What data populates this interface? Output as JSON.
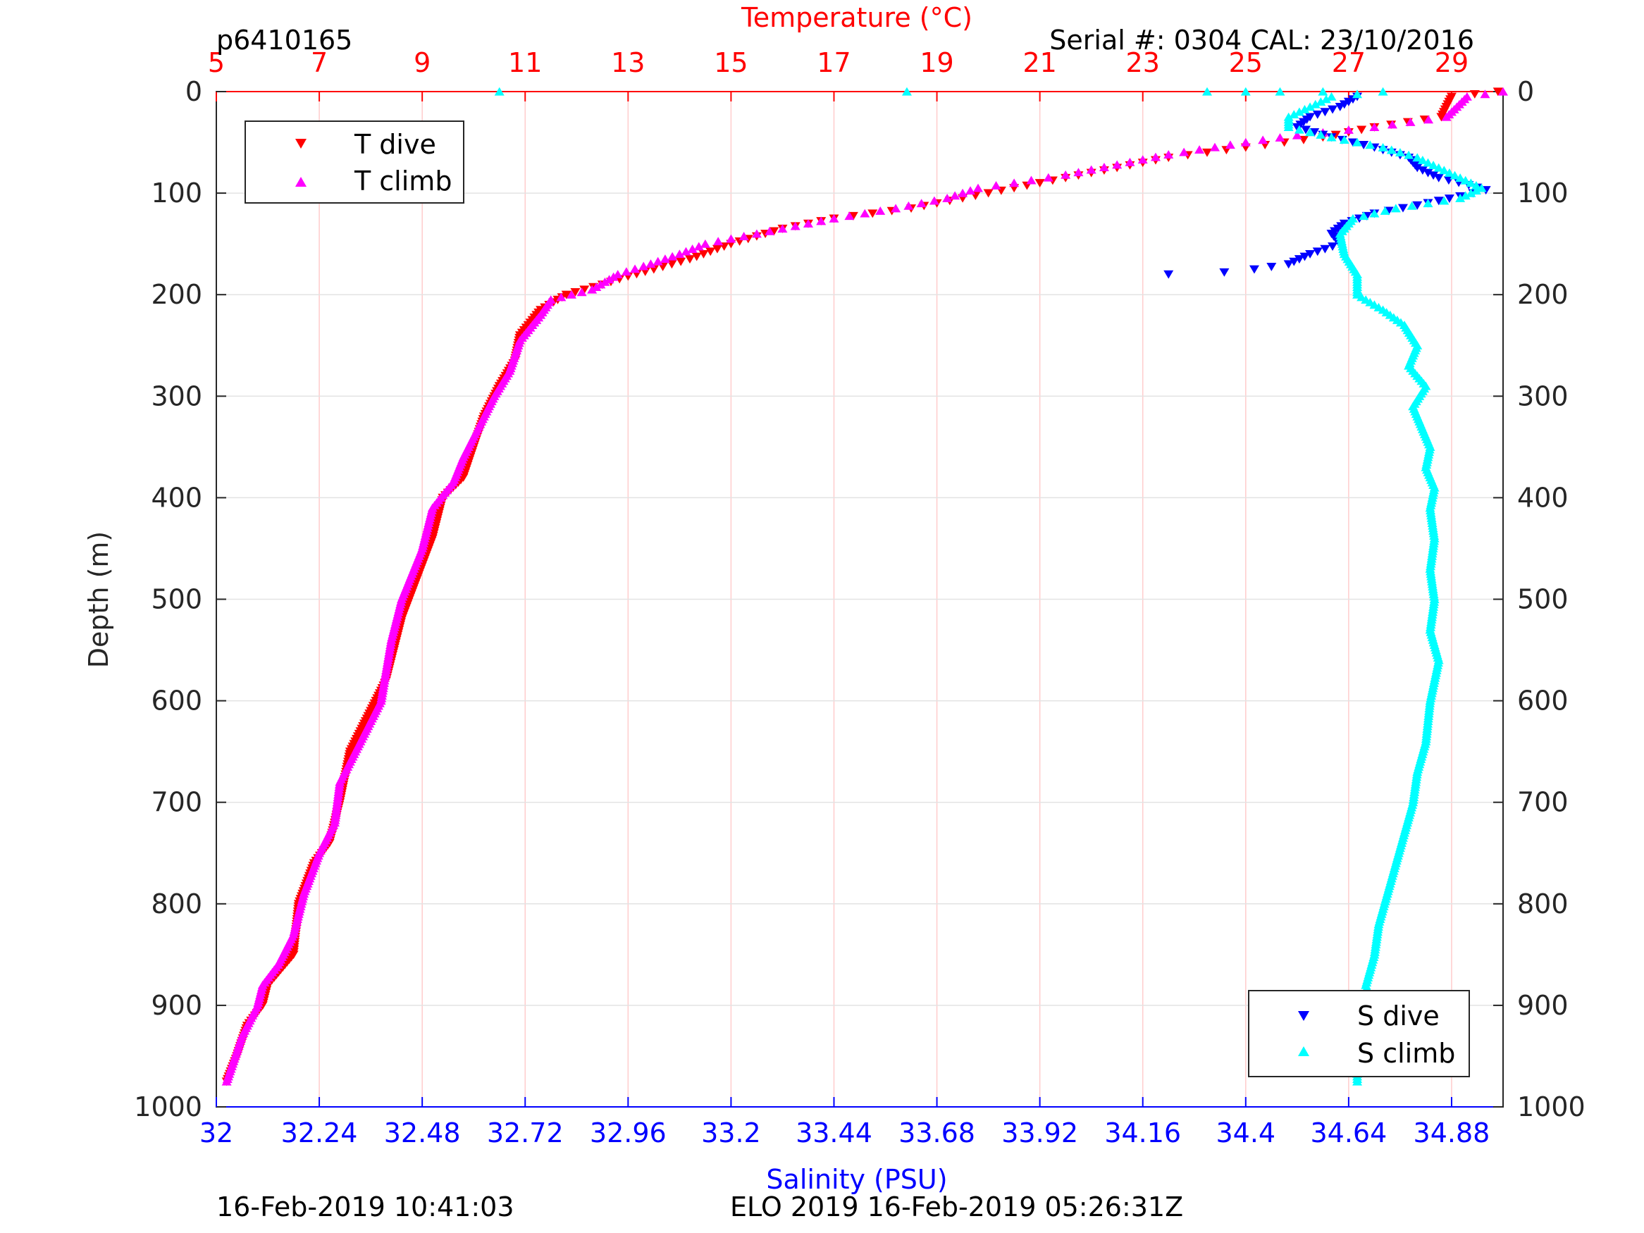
{
  "header": {
    "profile_id": "p6410165",
    "serial_cal": "Serial #: 0304  CAL: 23/10/2016"
  },
  "footer": {
    "left": "16-Feb-2019 10:41:03",
    "center": "ELO 2019 16-Feb-2019 05:26:31Z"
  },
  "colors": {
    "t_dive": "#ff0000",
    "t_climb": "#ff00ff",
    "s_dive": "#0000ff",
    "s_climb": "#00ffff",
    "temperature_axis": "#ff0000",
    "salinity_axis": "#0000ff"
  },
  "chart_data": {
    "type": "scatter",
    "grid": true,
    "y_axis": {
      "label": "Depth (m)",
      "range": [
        1000,
        0
      ],
      "reversed": true,
      "ticks": [
        0,
        100,
        200,
        300,
        400,
        500,
        600,
        700,
        800,
        900,
        1000
      ]
    },
    "temperature_axis": {
      "label": "Temperature (°C)",
      "position": "top",
      "range": [
        5,
        30
      ],
      "ticks": [
        5,
        7,
        9,
        11,
        13,
        15,
        17,
        19,
        21,
        23,
        25,
        27,
        29
      ]
    },
    "salinity_axis": {
      "label": "Salinity (PSU)",
      "position": "bottom",
      "range": [
        32,
        35.0
      ],
      "ticks": [
        32,
        32.24,
        32.48,
        32.72,
        32.96,
        33.2,
        33.44,
        33.68,
        33.92,
        34.16,
        34.4,
        34.64,
        34.88
      ],
      "tick_labels": [
        "32",
        "32.24",
        "32.48",
        "32.72",
        "32.96",
        "33.2",
        "33.44",
        "33.68",
        "33.92",
        "34.16",
        "34.4",
        "34.64",
        "34.88"
      ]
    },
    "legends": [
      {
        "placement": "top-left",
        "entries": [
          "T dive",
          "T climb"
        ]
      },
      {
        "placement": "bottom-right",
        "entries": [
          "S dive",
          "S climb"
        ]
      }
    ],
    "series": [
      {
        "name": "T dive",
        "axis": "temperature",
        "marker": "triangle-down",
        "points": [
          [
            29.9,
            0
          ],
          [
            29.0,
            5
          ],
          [
            28.9,
            15
          ],
          [
            28.8,
            25
          ],
          [
            27.5,
            35
          ],
          [
            26.5,
            45
          ],
          [
            25.0,
            55
          ],
          [
            23.5,
            65
          ],
          [
            22.5,
            75
          ],
          [
            21.5,
            85
          ],
          [
            20.5,
            95
          ],
          [
            19.5,
            105
          ],
          [
            18.5,
            115
          ],
          [
            17.0,
            125
          ],
          [
            16.0,
            135
          ],
          [
            15.0,
            150
          ],
          [
            14.2,
            165
          ],
          [
            13.5,
            175
          ],
          [
            13.0,
            182
          ],
          [
            12.5,
            190
          ],
          [
            11.8,
            200
          ],
          [
            11.3,
            215
          ],
          [
            10.9,
            240
          ],
          [
            10.8,
            265
          ],
          [
            10.5,
            290
          ],
          [
            10.2,
            320
          ],
          [
            10.0,
            350
          ],
          [
            9.8,
            380
          ],
          [
            9.4,
            400
          ],
          [
            9.2,
            440
          ],
          [
            8.9,
            480
          ],
          [
            8.6,
            520
          ],
          [
            8.3,
            580
          ],
          [
            8.0,
            610
          ],
          [
            7.6,
            650
          ],
          [
            7.4,
            700
          ],
          [
            7.2,
            740
          ],
          [
            6.9,
            760
          ],
          [
            6.6,
            800
          ],
          [
            6.5,
            850
          ],
          [
            6.0,
            880
          ],
          [
            5.9,
            900
          ],
          [
            5.6,
            920
          ],
          [
            5.4,
            950
          ],
          [
            5.2,
            975
          ]
        ]
      },
      {
        "name": "T climb",
        "axis": "temperature",
        "marker": "triangle-up",
        "points": [
          [
            30.0,
            0
          ],
          [
            29.3,
            5
          ],
          [
            29.1,
            15
          ],
          [
            28.9,
            25
          ],
          [
            27.5,
            35
          ],
          [
            26.0,
            43
          ],
          [
            25.0,
            50
          ],
          [
            23.5,
            62
          ],
          [
            22.5,
            72
          ],
          [
            21.5,
            82
          ],
          [
            20.5,
            90
          ],
          [
            19.8,
            95
          ],
          [
            19.2,
            105
          ],
          [
            18.2,
            115
          ],
          [
            17.0,
            125
          ],
          [
            16.0,
            135
          ],
          [
            14.5,
            150
          ],
          [
            14.0,
            160
          ],
          [
            13.3,
            172
          ],
          [
            12.8,
            180
          ],
          [
            12.3,
            195
          ],
          [
            11.5,
            205
          ],
          [
            11.3,
            220
          ],
          [
            10.9,
            245
          ],
          [
            10.7,
            275
          ],
          [
            10.4,
            300
          ],
          [
            10.1,
            330
          ],
          [
            9.8,
            360
          ],
          [
            9.6,
            385
          ],
          [
            9.2,
            410
          ],
          [
            9.0,
            450
          ],
          [
            8.6,
            500
          ],
          [
            8.4,
            540
          ],
          [
            8.2,
            600
          ],
          [
            7.8,
            640
          ],
          [
            7.4,
            680
          ],
          [
            7.3,
            720
          ],
          [
            7.0,
            750
          ],
          [
            6.7,
            790
          ],
          [
            6.5,
            830
          ],
          [
            6.2,
            860
          ],
          [
            5.9,
            880
          ],
          [
            5.8,
            900
          ],
          [
            5.5,
            930
          ],
          [
            5.3,
            960
          ],
          [
            5.2,
            975
          ]
        ]
      },
      {
        "name": "S dive",
        "axis": "salinity",
        "marker": "triangle-down",
        "points": [
          [
            34.66,
            5
          ],
          [
            34.62,
            15
          ],
          [
            34.55,
            25
          ],
          [
            34.52,
            35
          ],
          [
            34.6,
            45
          ],
          [
            34.7,
            55
          ],
          [
            34.78,
            65
          ],
          [
            34.8,
            75
          ],
          [
            34.85,
            85
          ],
          [
            34.92,
            92
          ],
          [
            34.96,
            97
          ],
          [
            34.9,
            103
          ],
          [
            34.8,
            112
          ],
          [
            34.7,
            120
          ],
          [
            34.63,
            130
          ],
          [
            34.6,
            140
          ],
          [
            34.62,
            150
          ],
          [
            34.55,
            160
          ],
          [
            34.5,
            170
          ],
          [
            34.42,
            175
          ],
          [
            34.35,
            178
          ],
          [
            34.22,
            180
          ]
        ]
      },
      {
        "name": "S climb",
        "axis": "salinity",
        "marker": "triangle-up",
        "points": [
          [
            32.66,
            0
          ],
          [
            33.61,
            0
          ],
          [
            34.31,
            0
          ],
          [
            34.4,
            0
          ],
          [
            34.48,
            0
          ],
          [
            34.58,
            0
          ],
          [
            34.72,
            0
          ],
          [
            34.6,
            5
          ],
          [
            34.55,
            15
          ],
          [
            34.5,
            25
          ],
          [
            34.5,
            35
          ],
          [
            34.6,
            45
          ],
          [
            34.72,
            55
          ],
          [
            34.8,
            65
          ],
          [
            34.85,
            75
          ],
          [
            34.9,
            85
          ],
          [
            34.95,
            95
          ],
          [
            34.9,
            105
          ],
          [
            34.75,
            115
          ],
          [
            34.65,
            125
          ],
          [
            34.62,
            140
          ],
          [
            34.63,
            160
          ],
          [
            34.66,
            180
          ],
          [
            34.66,
            200
          ],
          [
            34.72,
            215
          ],
          [
            34.77,
            230
          ],
          [
            34.8,
            250
          ],
          [
            34.78,
            270
          ],
          [
            34.82,
            290
          ],
          [
            34.79,
            310
          ],
          [
            34.81,
            330
          ],
          [
            34.83,
            350
          ],
          [
            34.82,
            370
          ],
          [
            34.84,
            390
          ],
          [
            34.83,
            410
          ],
          [
            34.84,
            440
          ],
          [
            34.83,
            470
          ],
          [
            34.84,
            500
          ],
          [
            34.83,
            530
          ],
          [
            34.85,
            560
          ],
          [
            34.83,
            600
          ],
          [
            34.82,
            640
          ],
          [
            34.8,
            670
          ],
          [
            34.79,
            700
          ],
          [
            34.77,
            730
          ],
          [
            34.75,
            760
          ],
          [
            34.73,
            790
          ],
          [
            34.71,
            820
          ],
          [
            34.7,
            850
          ],
          [
            34.68,
            880
          ],
          [
            34.7,
            900
          ],
          [
            34.67,
            930
          ],
          [
            34.66,
            960
          ],
          [
            34.66,
            975
          ]
        ]
      }
    ]
  }
}
